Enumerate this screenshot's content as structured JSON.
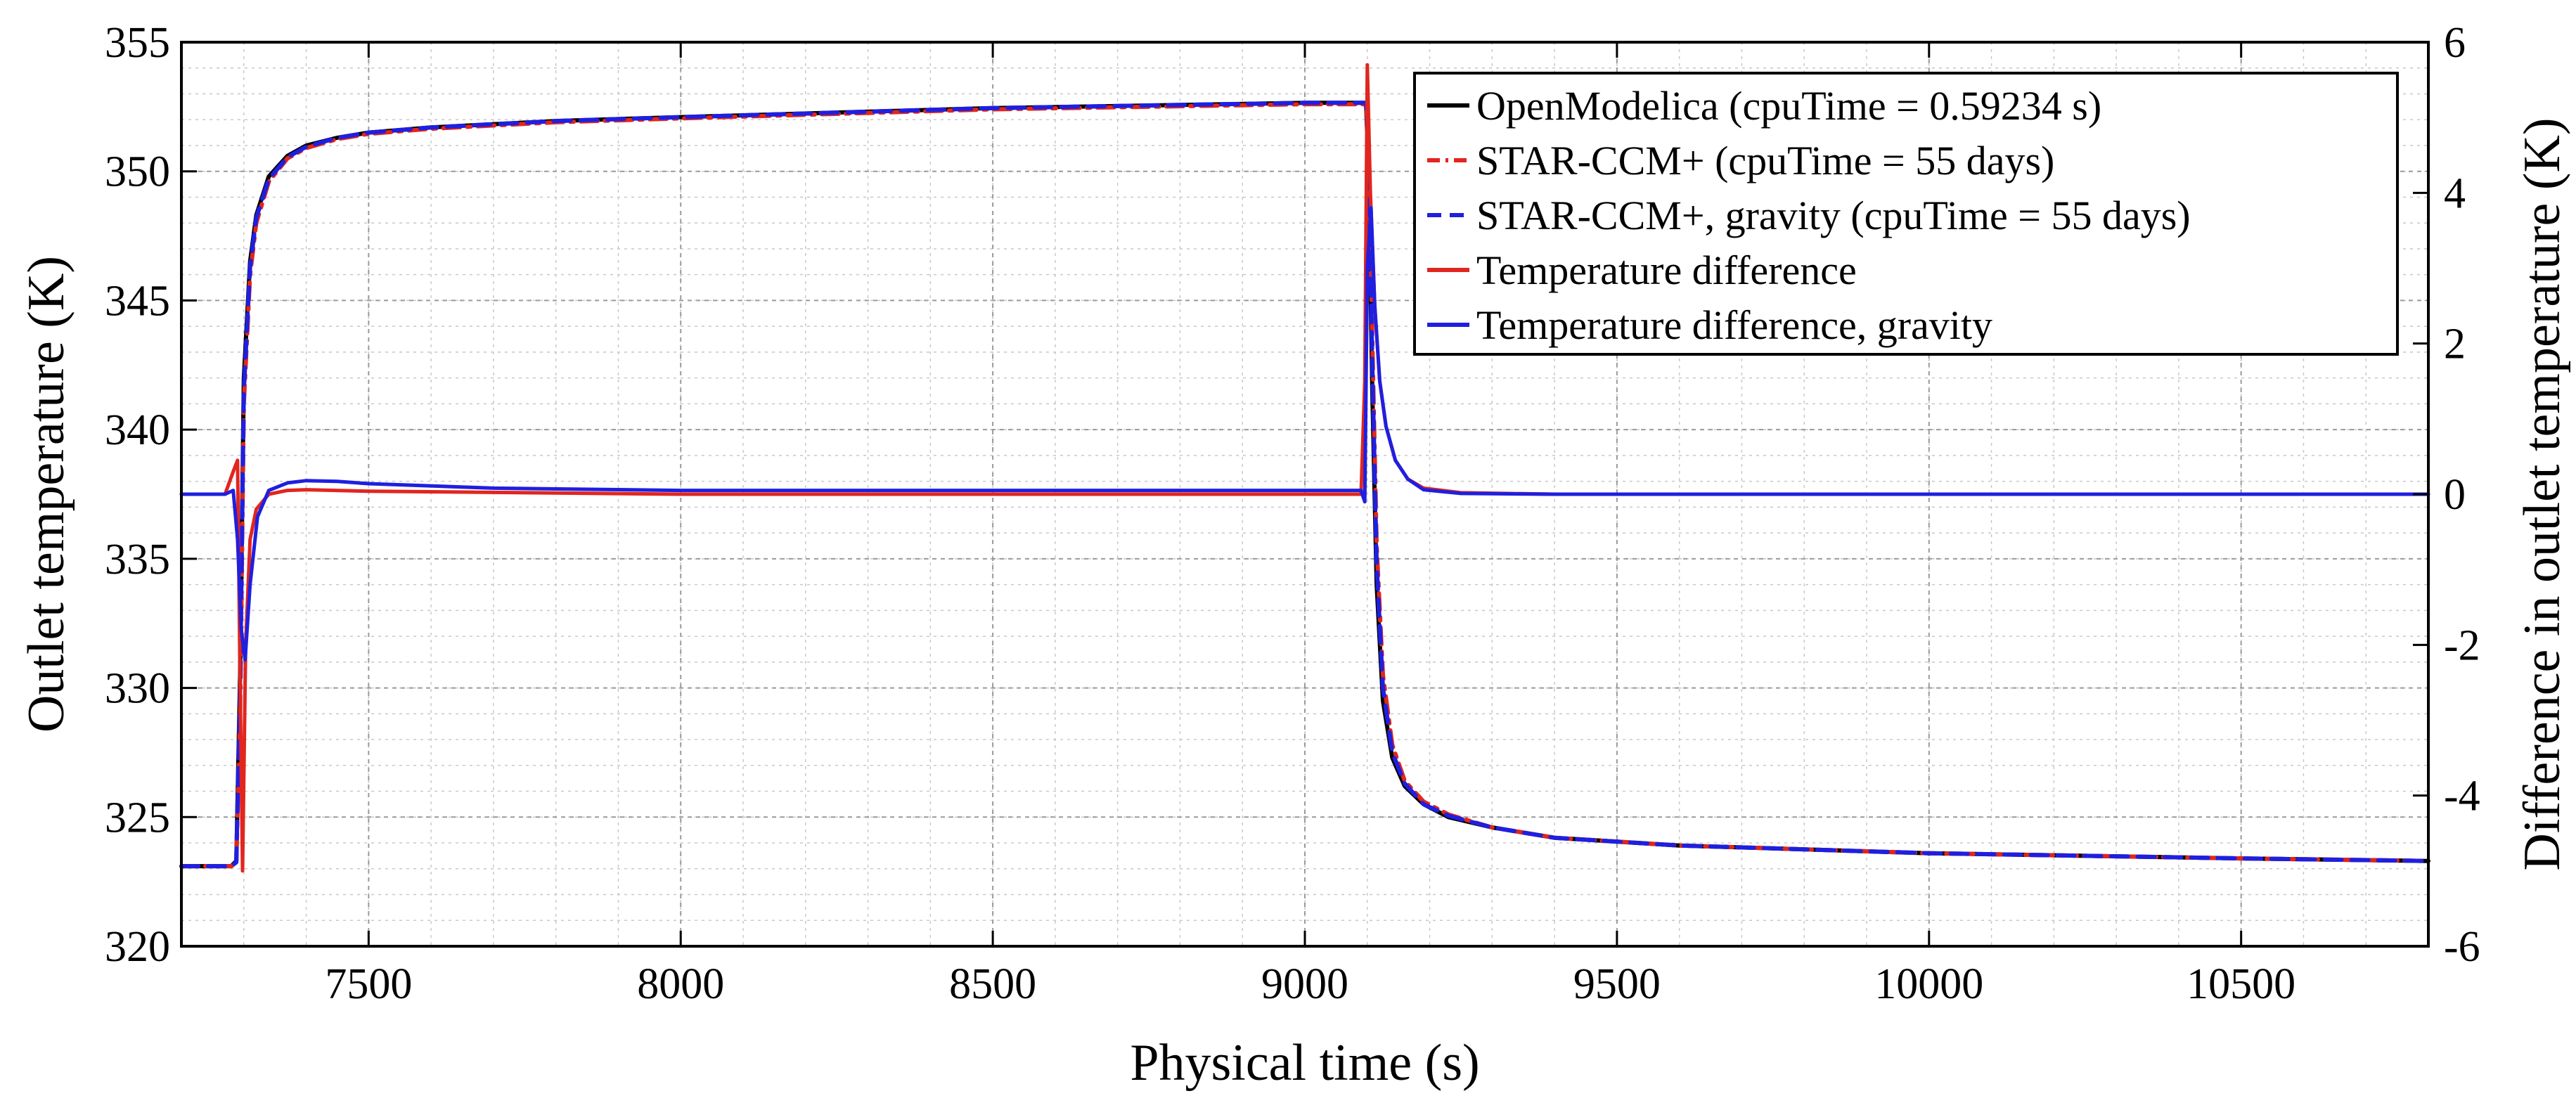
{
  "chart_data": {
    "type": "line",
    "xlabel": "Physical time (s)",
    "ylabel": "Outlet temperature (K)",
    "y2label": "Difference in outlet temperature (K)",
    "xlim": [
      7200,
      10800
    ],
    "ylim": [
      320,
      355
    ],
    "y2lim": [
      -6,
      6
    ],
    "xticks": [
      7500,
      8000,
      8500,
      9000,
      9500,
      10000,
      10500
    ],
    "yticks": [
      320,
      325,
      330,
      335,
      340,
      345,
      350,
      355
    ],
    "y2ticks": [
      -6,
      -4,
      -2,
      0,
      2,
      4,
      6
    ],
    "grid": true,
    "minor_grid": true,
    "legend_position": "top-right",
    "series": [
      {
        "name": "OpenModelica (cpuTime = 0.59234 s)",
        "axis": "left",
        "color": "#000000",
        "dash": "solid",
        "x": [
          7200,
          7280,
          7288,
          7294,
          7300,
          7310,
          7320,
          7340,
          7370,
          7400,
          7450,
          7500,
          7600,
          7800,
          8000,
          8500,
          9000,
          9098,
          9102,
          9108,
          9115,
          9125,
          9140,
          9160,
          9190,
          9230,
          9300,
          9400,
          9600,
          10000,
          10500,
          10800
        ],
        "y": [
          323.1,
          323.1,
          323.3,
          330.5,
          342.0,
          346.5,
          348.3,
          349.8,
          350.6,
          351.0,
          351.3,
          351.5,
          351.7,
          351.95,
          352.1,
          352.45,
          352.65,
          352.65,
          350.0,
          341.5,
          334.0,
          329.5,
          327.3,
          326.2,
          325.5,
          325.0,
          324.6,
          324.2,
          323.9,
          323.6,
          323.4,
          323.3
        ]
      },
      {
        "name": "STAR-CCM+ (cpuTime = 55 days)",
        "axis": "left",
        "color": "#e0261f",
        "dash": "dashdot",
        "x": [
          7200,
          7280,
          7288,
          7294,
          7300,
          7310,
          7320,
          7340,
          7370,
          7400,
          7450,
          7500,
          7600,
          7800,
          8000,
          8500,
          9000,
          9098,
          9102,
          9108,
          9115,
          9125,
          9140,
          9160,
          9190,
          9230,
          9300,
          9400,
          9600,
          10000,
          10500,
          10800
        ],
        "y": [
          323.1,
          323.1,
          323.2,
          329.0,
          341.0,
          346.0,
          348.0,
          349.6,
          350.5,
          350.9,
          351.25,
          351.45,
          351.65,
          351.9,
          352.05,
          352.4,
          352.6,
          352.6,
          351.0,
          343.5,
          335.5,
          330.5,
          327.8,
          326.4,
          325.6,
          325.1,
          324.6,
          324.2,
          323.9,
          323.6,
          323.4,
          323.3
        ]
      },
      {
        "name": "STAR-CCM+, gravity (cpuTime = 55 days)",
        "axis": "left",
        "color": "#1f1fe0",
        "dash": "dashed",
        "x": [
          7200,
          7280,
          7288,
          7294,
          7300,
          7310,
          7320,
          7340,
          7370,
          7400,
          7450,
          7500,
          7600,
          7800,
          8000,
          8500,
          9000,
          9098,
          9102,
          9108,
          9115,
          9125,
          9140,
          9160,
          9190,
          9230,
          9300,
          9400,
          9600,
          10000,
          10500,
          10800
        ],
        "y": [
          323.1,
          323.1,
          323.25,
          330.0,
          341.5,
          346.3,
          348.2,
          349.7,
          350.55,
          350.95,
          351.3,
          351.5,
          351.7,
          351.95,
          352.1,
          352.45,
          352.65,
          352.65,
          350.5,
          342.5,
          334.8,
          330.0,
          327.5,
          326.3,
          325.5,
          325.05,
          324.6,
          324.2,
          323.9,
          323.6,
          323.4,
          323.3
        ]
      },
      {
        "name": "Temperature difference",
        "axis": "right",
        "color": "#e0261f",
        "dash": "solid",
        "x": [
          7200,
          7270,
          7283,
          7290,
          7294,
          7298,
          7303,
          7310,
          7320,
          7340,
          7370,
          7400,
          7500,
          8000,
          8500,
          9000,
          9090,
          9096,
          9100,
          9105,
          9112,
          9120,
          9130,
          9145,
          9165,
          9190,
          9250,
          9400,
          10000,
          10800
        ],
        "y": [
          0,
          0,
          0.3,
          0.45,
          -2.5,
          -5.0,
          -2.0,
          -0.6,
          -0.2,
          0.0,
          0.05,
          0.06,
          0.04,
          0.0,
          0.0,
          0.0,
          0.0,
          1.5,
          5.7,
          4.0,
          2.5,
          1.5,
          0.9,
          0.45,
          0.2,
          0.08,
          0.02,
          0.0,
          0.0,
          0.0
        ]
      },
      {
        "name": "Temperature difference, gravity",
        "axis": "right",
        "color": "#1f1fe0",
        "dash": "solid",
        "x": [
          7200,
          7270,
          7283,
          7290,
          7296,
          7302,
          7310,
          7322,
          7340,
          7370,
          7400,
          7450,
          7500,
          7700,
          8000,
          8500,
          9000,
          9090,
          9096,
          9100,
          9106,
          9112,
          9120,
          9130,
          9145,
          9165,
          9190,
          9250,
          9400,
          10000,
          10800
        ],
        "y": [
          0,
          0,
          0.05,
          -0.6,
          -1.8,
          -2.2,
          -1.2,
          -0.3,
          0.05,
          0.15,
          0.18,
          0.17,
          0.14,
          0.08,
          0.05,
          0.05,
          0.05,
          0.05,
          -0.1,
          3.0,
          3.8,
          2.5,
          1.5,
          0.9,
          0.45,
          0.2,
          0.06,
          0.01,
          0.0,
          0.0,
          0.0
        ]
      }
    ]
  }
}
